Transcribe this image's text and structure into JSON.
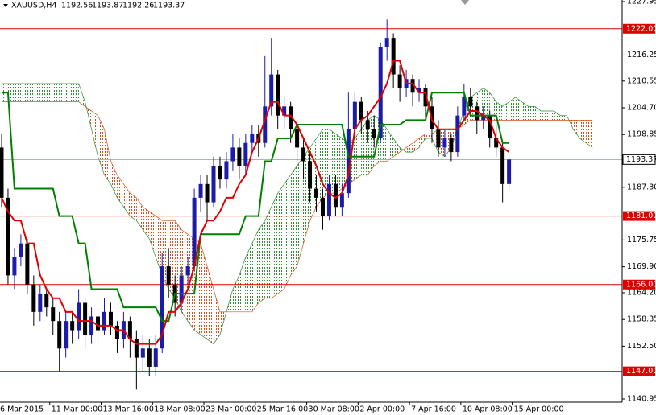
{
  "chart_data": {
    "type": "candlestick",
    "symbol": "XAUUSD,H4",
    "ohlc": [
      1192.56,
      1193.87,
      1192.26,
      1193.37
    ],
    "ylim": [
      1140.95,
      1227.95
    ],
    "yticks": [
      1227.95,
      1216.25,
      1210.55,
      {
        "value": 1204.7,
        "label": "1204.70"
      },
      1198.85,
      {
        "value": 1187.3,
        "label": "1187.30"
      },
      1175.75,
      {
        "value": 1169.9,
        "label": "1169.90"
      },
      {
        "value": 1164.2,
        "label": "1164.20"
      },
      1158.35,
      {
        "value": 1152.5,
        "label": "1152.50"
      },
      1140.95
    ],
    "levels": [
      {
        "value": 1222,
        "label": "1222.00"
      },
      {
        "value": 1181,
        "label": "1181.00"
      },
      {
        "value": 1166,
        "label": "1166.00"
      },
      {
        "value": 1147,
        "label": "1147.00"
      }
    ],
    "level_color": "#e00000",
    "last_price": 1193.37,
    "xticks": [
      {
        "value": 0,
        "label": "6 Mar 2015"
      },
      {
        "value": 8,
        "label": "11 Mar 00:00"
      },
      {
        "value": 16,
        "label": "13 Mar 16:00"
      },
      {
        "value": 24,
        "label": "18 Mar 08:00"
      },
      {
        "value": 32,
        "label": "23 Mar 00:00"
      },
      {
        "value": 40,
        "label": "25 Mar 16:00"
      },
      {
        "value": 48,
        "label": "30 Mar 08:00"
      },
      {
        "value": 56,
        "label": "2 Apr 00:00"
      },
      {
        "value": 64,
        "label": "7 Apr 16:00"
      },
      {
        "value": 72,
        "label": "10 Apr 08:00"
      },
      {
        "value": 80,
        "label": "15 Apr 00:00"
      }
    ],
    "up_color": "#1c1ca8",
    "down_color": "#000000",
    "candles": [
      [
        1196,
        1199,
        1183,
        1185
      ],
      [
        1185,
        1187,
        1166,
        1168
      ],
      [
        1168,
        1174,
        1165,
        1172
      ],
      [
        1172,
        1177,
        1170,
        1175
      ],
      [
        1175,
        1176,
        1164,
        1166
      ],
      [
        1166,
        1168,
        1157,
        1160
      ],
      [
        1160,
        1166,
        1158,
        1164
      ],
      [
        1164,
        1165,
        1159,
        1161
      ],
      [
        1161,
        1163,
        1155,
        1158
      ],
      [
        1158,
        1160,
        1147,
        1152
      ],
      [
        1152,
        1160,
        1150,
        1158
      ],
      [
        1158,
        1160,
        1153,
        1156
      ],
      [
        1156,
        1165,
        1154,
        1162
      ],
      [
        1162,
        1163,
        1152,
        1155
      ],
      [
        1155,
        1161,
        1153,
        1159
      ],
      [
        1159,
        1161,
        1153,
        1156
      ],
      [
        1156,
        1163,
        1155,
        1160
      ],
      [
        1160,
        1162,
        1155,
        1157
      ],
      [
        1157,
        1158,
        1151,
        1154
      ],
      [
        1154,
        1160,
        1152,
        1158
      ],
      [
        1158,
        1159,
        1150,
        1154
      ],
      [
        1154,
        1156,
        1143,
        1150
      ],
      [
        1150,
        1155,
        1147,
        1152
      ],
      [
        1152,
        1154,
        1146,
        1148
      ],
      [
        1148,
        1155,
        1146,
        1152
      ],
      [
        1152,
        1173,
        1151,
        1170
      ],
      [
        1170,
        1174,
        1163,
        1166
      ],
      [
        1166,
        1168,
        1159,
        1162
      ],
      [
        1162,
        1170,
        1160,
        1168
      ],
      [
        1168,
        1172,
        1166,
        1170
      ],
      [
        1170,
        1187,
        1169,
        1185
      ],
      [
        1185,
        1190,
        1182,
        1188
      ],
      [
        1188,
        1190,
        1180,
        1184
      ],
      [
        1184,
        1194,
        1183,
        1192
      ],
      [
        1192,
        1194,
        1187,
        1189
      ],
      [
        1189,
        1195,
        1187,
        1193
      ],
      [
        1193,
        1199,
        1191,
        1196
      ],
      [
        1196,
        1198,
        1189,
        1192
      ],
      [
        1192,
        1199,
        1190,
        1197
      ],
      [
        1197,
        1201,
        1195,
        1199
      ],
      [
        1199,
        1201,
        1194,
        1197
      ],
      [
        1197,
        1216,
        1196,
        1205
      ],
      [
        1205,
        1220,
        1203,
        1212
      ],
      [
        1212,
        1213,
        1200,
        1203
      ],
      [
        1203,
        1207,
        1200,
        1205
      ],
      [
        1205,
        1206,
        1197,
        1200
      ],
      [
        1200,
        1202,
        1193,
        1196
      ],
      [
        1196,
        1198,
        1189,
        1193
      ],
      [
        1193,
        1195,
        1184,
        1187
      ],
      [
        1187,
        1190,
        1182,
        1185
      ],
      [
        1185,
        1187,
        1178,
        1181
      ],
      [
        1181,
        1190,
        1180,
        1188
      ],
      [
        1188,
        1190,
        1181,
        1183
      ],
      [
        1183,
        1188,
        1181,
        1186
      ],
      [
        1186,
        1208,
        1185,
        1200
      ],
      [
        1200,
        1208,
        1198,
        1206
      ],
      [
        1206,
        1207,
        1199,
        1202
      ],
      [
        1202,
        1204,
        1197,
        1200
      ],
      [
        1200,
        1203,
        1196,
        1198
      ],
      [
        1198,
        1219,
        1197,
        1218
      ],
      [
        1218,
        1224,
        1215,
        1220
      ],
      [
        1220,
        1221,
        1209,
        1212
      ],
      [
        1212,
        1214,
        1206,
        1209
      ],
      [
        1209,
        1213,
        1207,
        1211
      ],
      [
        1211,
        1212,
        1205,
        1208
      ],
      [
        1208,
        1211,
        1206,
        1209
      ],
      [
        1209,
        1210,
        1202,
        1205
      ],
      [
        1205,
        1207,
        1197,
        1200
      ],
      [
        1200,
        1202,
        1194,
        1196
      ],
      [
        1196,
        1200,
        1194,
        1198
      ],
      [
        1198,
        1199,
        1193,
        1195
      ],
      [
        1195,
        1205,
        1194,
        1203
      ],
      [
        1203,
        1210,
        1202,
        1207
      ],
      [
        1207,
        1209,
        1203,
        1205
      ],
      [
        1205,
        1206,
        1199,
        1202
      ],
      [
        1202,
        1205,
        1200,
        1203
      ],
      [
        1203,
        1204,
        1196,
        1198
      ],
      [
        1198,
        1201,
        1194,
        1196
      ],
      [
        1196,
        1197,
        1184,
        1188
      ],
      [
        1188,
        1194,
        1187,
        1193.37
      ]
    ],
    "tenkan": {
      "color": "#e00000",
      "values": [
        1185,
        1182,
        1180,
        1180,
        1175,
        1175,
        1168,
        1165,
        1163,
        1163,
        1160,
        1160,
        1158,
        1158,
        1158,
        1157,
        1157,
        1157,
        1156,
        1156,
        1154,
        1153,
        1153,
        1153,
        1153,
        1155,
        1160,
        1160,
        1162,
        1165,
        1170,
        1177,
        1180,
        1180,
        1182,
        1185,
        1185,
        1188,
        1190,
        1195,
        1198,
        1202,
        1206,
        1206,
        1203,
        1203,
        1201,
        1198,
        1195,
        1192,
        1188,
        1186,
        1185,
        1186,
        1190,
        1200,
        1202,
        1203,
        1205,
        1207,
        1210,
        1215,
        1215,
        1210,
        1210,
        1208,
        1208,
        1202,
        1200,
        1200,
        1200,
        1200,
        1202,
        1204,
        1204,
        1203,
        1202,
        1198,
        1196,
        1195
      ]
    },
    "kijun": {
      "color": "#008000",
      "values": [
        1208,
        1208,
        1187,
        1187,
        1187,
        1187,
        1187,
        1187,
        1187,
        1181,
        1181,
        1181,
        1175,
        1175,
        1165,
        1165,
        1165,
        1165,
        1165,
        1161,
        1161,
        1161,
        1161,
        1161,
        1161,
        1158,
        1158,
        1164,
        1164,
        1164,
        1164,
        1177,
        1177,
        1177,
        1177,
        1177,
        1177,
        1177,
        1181,
        1181,
        1181,
        1193,
        1193,
        1198,
        1198,
        1198,
        1201,
        1201,
        1201,
        1201,
        1201,
        1201,
        1201,
        1201,
        1194,
        1194,
        1194,
        1194,
        1194,
        1201,
        1201,
        1201,
        1201,
        1202,
        1202,
        1202,
        1202,
        1208,
        1208,
        1208,
        1208,
        1208,
        1208,
        1203,
        1203,
        1203,
        1203,
        1203,
        1197,
        1197
      ]
    },
    "span_a": {
      "color": "#2e8b2e",
      "values": [
        1210,
        1210,
        1210,
        1210,
        1210,
        1210,
        1210,
        1210,
        1210,
        1210,
        1210,
        1210,
        1210,
        1206,
        1200,
        1194,
        1190,
        1188,
        1185,
        1183,
        1181,
        1180,
        1178,
        1176,
        1172,
        1168,
        1165,
        1163,
        1160,
        1158,
        1156,
        1155,
        1154,
        1153,
        1155,
        1160,
        1165,
        1168,
        1172,
        1175,
        1178,
        1180,
        1183,
        1186,
        1188,
        1190,
        1192,
        1194,
        1196,
        1198,
        1200,
        1200,
        1199,
        1198,
        1197,
        1198,
        1200,
        1202,
        1203,
        1202,
        1200,
        1198,
        1196,
        1195,
        1195,
        1196,
        1198,
        1198,
        1195,
        1194,
        1196,
        1200,
        1204,
        1207,
        1208,
        1209,
        1208,
        1206,
        1205,
        1206,
        1207,
        1206,
        1205,
        1205,
        1204,
        1204,
        1204,
        1203,
        1203,
        1200,
        1198,
        1197,
        1196
      ]
    },
    "span_b": {
      "color": "#d2501e",
      "values": [
        1206,
        1206,
        1206,
        1206,
        1206,
        1206,
        1206,
        1206,
        1206,
        1206,
        1206,
        1206,
        1206,
        1205,
        1204,
        1203,
        1200,
        1193,
        1190,
        1188,
        1186,
        1185,
        1183,
        1182,
        1181,
        1180,
        1180,
        1180,
        1178,
        1177,
        1176,
        1175,
        1170,
        1165,
        1160,
        1160,
        1160,
        1160,
        1160,
        1160,
        1162,
        1163,
        1163,
        1164,
        1165,
        1168,
        1170,
        1175,
        1180,
        1183,
        1185,
        1186,
        1186,
        1187,
        1188,
        1189,
        1190,
        1190,
        1192,
        1193,
        1193,
        1194,
        1195,
        1196,
        1197,
        1198,
        1199,
        1199,
        1200,
        1200,
        1200,
        1200,
        1201,
        1202,
        1202,
        1202,
        1202,
        1202,
        1202,
        1202,
        1202,
        1202,
        1202,
        1202,
        1202,
        1202,
        1202,
        1202,
        1202,
        1202,
        1202,
        1202,
        1202
      ]
    }
  }
}
